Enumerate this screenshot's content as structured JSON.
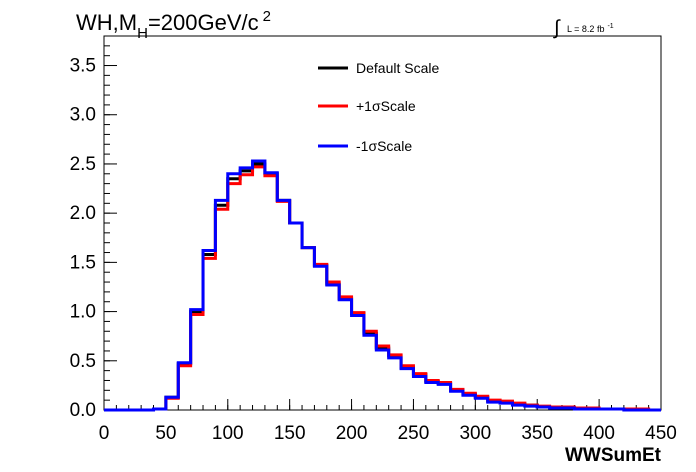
{
  "chart_data": {
    "type": "line",
    "title_parts": {
      "prefix": "WH,M",
      "sub": "H",
      "mid": "=200GeV/c",
      "sup": "2"
    },
    "lumi_parts": {
      "integral": "∫",
      "text": "L = 8.2 fb",
      "sup": "-1"
    },
    "xlabel": "WWSumEt",
    "ylabel": "",
    "xlim": [
      0,
      450
    ],
    "ylim": [
      0,
      3.8
    ],
    "x_ticks": [
      0,
      50,
      100,
      150,
      200,
      250,
      300,
      350,
      400,
      450
    ],
    "x_tick_labels": [
      "0",
      "50",
      "100",
      "150",
      "200",
      "250",
      "300",
      "350",
      "400",
      "450"
    ],
    "y_ticks": [
      0,
      0.5,
      1.0,
      1.5,
      2.0,
      2.5,
      3.0,
      3.5
    ],
    "y_tick_labels": [
      "0.0",
      "0.5",
      "1.0",
      "1.5",
      "2.0",
      "2.5",
      "3.0",
      "3.5"
    ],
    "grid": false,
    "legend_position": "top-center",
    "bin_edges": [
      0,
      10,
      20,
      30,
      40,
      50,
      60,
      70,
      80,
      90,
      100,
      110,
      120,
      130,
      140,
      150,
      160,
      170,
      180,
      190,
      200,
      210,
      220,
      230,
      240,
      250,
      260,
      270,
      280,
      290,
      300,
      310,
      320,
      330,
      340,
      350,
      360,
      370,
      380,
      390,
      400,
      410,
      420,
      430,
      440,
      450
    ],
    "series": [
      {
        "name": "Default Scale",
        "color": "#000000",
        "values": [
          0,
          0,
          0,
          0,
          0.01,
          0.13,
          0.47,
          1.0,
          1.58,
          2.08,
          2.35,
          2.43,
          2.5,
          2.4,
          2.13,
          1.9,
          1.65,
          1.47,
          1.28,
          1.13,
          0.98,
          0.78,
          0.63,
          0.55,
          0.43,
          0.36,
          0.29,
          0.27,
          0.2,
          0.16,
          0.13,
          0.09,
          0.08,
          0.06,
          0.05,
          0.03,
          0.03,
          0.02,
          0.02,
          0.01,
          0.01,
          0.01,
          0.01,
          0.0,
          0.0
        ]
      },
      {
        "name": "+1σScale",
        "color": "#ff0000",
        "values": [
          0,
          0,
          0,
          0,
          0.01,
          0.12,
          0.45,
          0.97,
          1.54,
          2.04,
          2.3,
          2.39,
          2.47,
          2.38,
          2.12,
          1.9,
          1.65,
          1.48,
          1.3,
          1.15,
          0.99,
          0.8,
          0.65,
          0.56,
          0.45,
          0.37,
          0.3,
          0.28,
          0.21,
          0.17,
          0.14,
          0.1,
          0.09,
          0.07,
          0.05,
          0.04,
          0.03,
          0.03,
          0.02,
          0.02,
          0.01,
          0.01,
          0.01,
          0.01,
          0.0
        ]
      },
      {
        "name": "-1σScale",
        "color": "#0000ff",
        "values": [
          0,
          0,
          0,
          0,
          0.01,
          0.13,
          0.48,
          1.02,
          1.62,
          2.13,
          2.4,
          2.46,
          2.53,
          2.41,
          2.13,
          1.9,
          1.65,
          1.46,
          1.27,
          1.12,
          0.96,
          0.76,
          0.61,
          0.53,
          0.42,
          0.34,
          0.28,
          0.26,
          0.19,
          0.15,
          0.12,
          0.08,
          0.07,
          0.05,
          0.04,
          0.03,
          0.02,
          0.02,
          0.01,
          0.01,
          0.01,
          0.01,
          0.0,
          0.0,
          0.0
        ]
      }
    ]
  }
}
